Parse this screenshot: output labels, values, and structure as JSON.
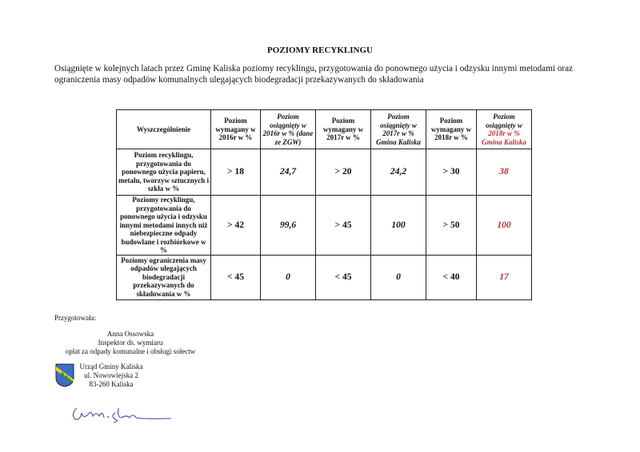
{
  "title": "POZIOMY RECYKLINGU",
  "intro": "Osiągnięte w kolejnych latach przez Gminę Kaliska poziomy recyklingu, przygotowania do ponownego użycia i odzysku innymi metodami oraz ograniczenia masy odpadów komunalnych ulegających biodegradacji przekazywanych do składowania",
  "table": {
    "headers": [
      "Wyszczególnienie",
      "Poziom wymagany w 2016r w %",
      "Poziom osiągnięty w 2016r w % (dane ze ZGW)",
      "Poziom wymagany w 2017r w %",
      "Poziom osiągnięty w 2017r w % Gmina Kaliska",
      "Poziom wymagany w 2018r w %"
    ],
    "header_last": {
      "a": "Poziom osiągnięty w",
      "b": "2018r w % Gmina Kaliska"
    },
    "rows": [
      {
        "label": "Poziom recyklingu, przygotowania do ponownego użycia papieru, metalu, tworzyw sztucznych i szkła w %",
        "cells": [
          "> 18",
          "24,7",
          "> 20",
          "24,2",
          "> 30",
          "38"
        ]
      },
      {
        "label": "Poziomy recyklingu, przygotowania do ponownego użycia i odzysku innymi metodami innych niż niebezpieczne odpady budowlane i rozbiórkowe w %",
        "cells": [
          "> 42",
          "99,6",
          "> 45",
          "100",
          "> 50",
          "100"
        ]
      },
      {
        "label": "Poziomy ograniczenia masy odpadów ulegających biodegradacji przekazywanych do składowania w %",
        "cells": [
          "< 45",
          "0",
          "< 45",
          "0",
          "< 40",
          "17"
        ]
      }
    ]
  },
  "prepared_label": "Przygotowała:",
  "person": {
    "name": "Anna Ossowska",
    "role": "Inspektor ds. wymiaru",
    "dept": "opłat za odpady komunalne i obsługi sołectw"
  },
  "office": {
    "name": "Urząd Gminy Kaliska",
    "street": "ul. Nowowiejska 2",
    "city": "83-260 Kaliska"
  },
  "colors": {
    "highlight": "#c0282d",
    "signature": "#3a4fa8"
  }
}
